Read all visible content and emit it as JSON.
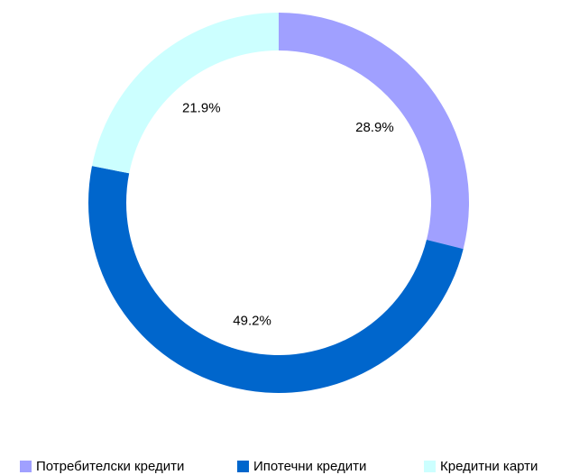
{
  "chart_data": {
    "type": "donut",
    "categories": [
      "Потребителски кредити",
      "Ипотечни кредити",
      "Кредитни карти"
    ],
    "values": [
      28.9,
      49.2,
      21.9
    ],
    "value_labels": [
      "28.9%",
      "49.2%",
      "21.9%"
    ],
    "colors": [
      "#a0a0ff",
      "#0066cc",
      "#ccffff"
    ],
    "legend": "bottom"
  }
}
